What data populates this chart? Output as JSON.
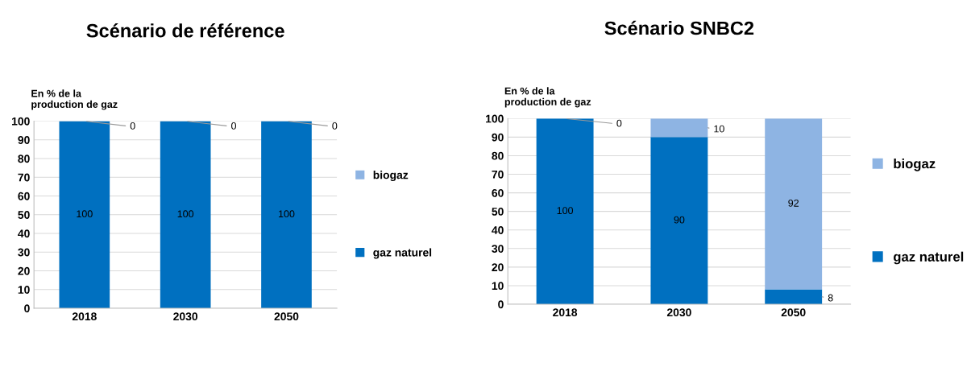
{
  "chart_data": [
    {
      "type": "bar",
      "title": "Scénario de référence",
      "ylabel": "En % de la\nproduction de gaz",
      "categories": [
        "2018",
        "2030",
        "2050"
      ],
      "stacked": true,
      "ylim": [
        0,
        100
      ],
      "yticks": [
        0,
        10,
        20,
        30,
        40,
        50,
        60,
        70,
        80,
        90,
        100
      ],
      "grid": "y",
      "legend": "right",
      "annotations": [
        {
          "text": "0",
          "x": "2018",
          "y": 100
        },
        {
          "text": "0",
          "x": "2030",
          "y": 100
        },
        {
          "text": "0",
          "x": "2050",
          "y": 100
        }
      ],
      "series": [
        {
          "name": "gaz naturel",
          "color": "#0070c0",
          "values": [
            100,
            100,
            100
          ],
          "value_labels": [
            "100",
            "100",
            "100"
          ]
        },
        {
          "name": "biogaz",
          "color": "#8eb4e3",
          "values": [
            0,
            0,
            0
          ],
          "value_labels": [
            null,
            null,
            null
          ]
        }
      ]
    },
    {
      "type": "bar",
      "title": "Scénario SNBC2",
      "ylabel": "En % de la\nproduction de gaz",
      "categories": [
        "2018",
        "2030",
        "2050"
      ],
      "stacked": true,
      "ylim": [
        0,
        100
      ],
      "yticks": [
        0,
        10,
        20,
        30,
        40,
        50,
        60,
        70,
        80,
        90,
        100
      ],
      "grid": "y",
      "legend": "right",
      "annotations": [
        {
          "text": "0",
          "x": "2018",
          "y": 100
        }
      ],
      "series": [
        {
          "name": "gaz naturel",
          "color": "#0070c0",
          "values": [
            100,
            90,
            8
          ],
          "value_labels": [
            "100",
            "90",
            "8"
          ]
        },
        {
          "name": "biogaz",
          "color": "#8eb4e3",
          "values": [
            0,
            10,
            92
          ],
          "value_labels": [
            null,
            "10",
            "92"
          ]
        }
      ]
    }
  ]
}
